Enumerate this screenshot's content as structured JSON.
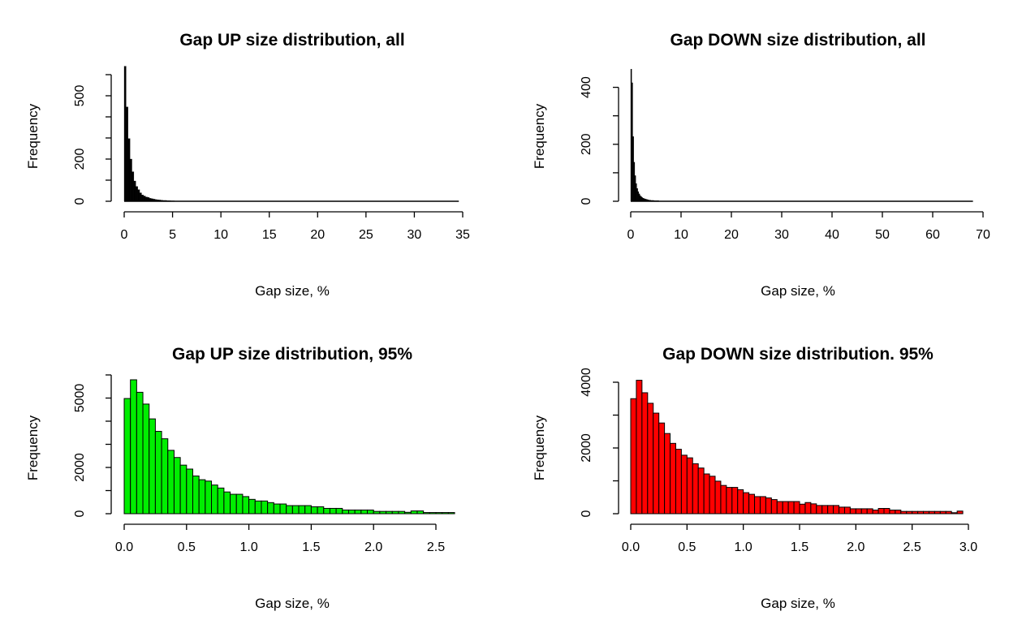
{
  "chart_data": [
    {
      "type": "bar",
      "title": "Gap UP size distribution, all",
      "xlabel": "Gap size, %",
      "ylabel": "Frequency",
      "fill": "#000000",
      "bin_width": 0.2,
      "bin_range": [
        0,
        34.6
      ],
      "xlim": [
        0,
        35
      ],
      "x_ticks": [
        0,
        5,
        10,
        15,
        20,
        25,
        30,
        35
      ],
      "y_ticks": [
        0,
        100,
        200,
        300,
        400,
        500,
        600
      ],
      "y_tick_labels": {
        "0": "0",
        "200": "200",
        "500": "500"
      },
      "values": [
        640,
        447,
        297,
        200,
        140,
        96,
        70,
        55,
        40,
        30,
        25,
        20,
        18,
        14,
        12,
        10,
        8,
        7,
        6,
        5,
        4,
        4,
        3,
        3,
        2,
        2
      ]
    },
    {
      "type": "bar",
      "title": "Gap DOWN size distribution, all",
      "xlabel": "Gap size, %",
      "ylabel": "Frequency",
      "fill": "#000000",
      "bin_width": 0.2,
      "bin_range": [
        0,
        68
      ],
      "xlim": [
        0,
        70
      ],
      "x_ticks": [
        0,
        10,
        20,
        30,
        40,
        50,
        60,
        70
      ],
      "y_ticks": [
        0,
        100,
        200,
        300,
        400
      ],
      "y_tick_labels": {
        "0": "0",
        "200": "200",
        "400": "400"
      },
      "values": [
        464,
        416,
        227,
        137,
        90,
        62,
        45,
        34,
        26,
        20,
        16,
        13,
        11,
        9,
        8,
        7,
        6,
        5,
        4,
        4,
        3,
        3,
        3,
        2,
        2,
        2,
        2,
        2,
        1,
        1
      ]
    },
    {
      "type": "bar",
      "title": "Gap UP size distribution, 95%",
      "xlabel": "Gap size, %",
      "ylabel": "Frequency",
      "fill": "#00ee00",
      "bin_width": 0.05,
      "xlim": [
        0,
        2.5
      ],
      "x_ticks": [
        0,
        0.5,
        1,
        1.5,
        2,
        2.5
      ],
      "x_tick_labels": [
        "0.0",
        "0.5",
        "1.0",
        "1.5",
        "2.0",
        "2.5"
      ],
      "y_ticks": [
        0,
        1000,
        2000,
        3000,
        4000,
        5000,
        6000
      ],
      "y_tick_labels": {
        "0": "0",
        "2000": "2000",
        "5000": "5000"
      },
      "values": [
        4980,
        5790,
        5250,
        4740,
        4100,
        3560,
        3240,
        2740,
        2430,
        2100,
        1930,
        1630,
        1470,
        1410,
        1240,
        1110,
        940,
        840,
        840,
        740,
        620,
        550,
        550,
        480,
        420,
        420,
        350,
        350,
        350,
        350,
        300,
        300,
        230,
        230,
        230,
        160,
        160,
        160,
        160,
        160,
        100,
        100,
        100,
        100,
        100,
        60,
        120,
        120,
        50,
        50,
        50,
        50,
        50
      ]
    },
    {
      "type": "bar",
      "title": "Gap DOWN size distribution. 95%",
      "xlabel": "Gap size, %",
      "ylabel": "Frequency",
      "fill": "#ff0000",
      "bin_width": 0.05,
      "xlim": [
        0,
        3
      ],
      "x_ticks": [
        0,
        0.5,
        1,
        1.5,
        2,
        2.5,
        3
      ],
      "x_tick_labels": [
        "0.0",
        "0.5",
        "1.0",
        "1.5",
        "2.0",
        "2.5",
        "3.0"
      ],
      "y_ticks": [
        0,
        1000,
        2000,
        3000,
        4000
      ],
      "y_tick_labels": {
        "0": "0",
        "2000": "2000",
        "4000": "4000"
      },
      "values": [
        3500,
        4060,
        3680,
        3360,
        3060,
        2760,
        2440,
        2140,
        1960,
        1780,
        1700,
        1520,
        1390,
        1210,
        1140,
        990,
        860,
        800,
        800,
        730,
        640,
        590,
        520,
        520,
        480,
        430,
        370,
        370,
        370,
        370,
        290,
        340,
        300,
        250,
        250,
        250,
        250,
        200,
        200,
        150,
        150,
        150,
        150,
        110,
        160,
        160,
        110,
        110,
        70,
        70,
        70,
        70,
        70,
        70,
        70,
        70,
        70,
        30,
        80
      ]
    }
  ]
}
